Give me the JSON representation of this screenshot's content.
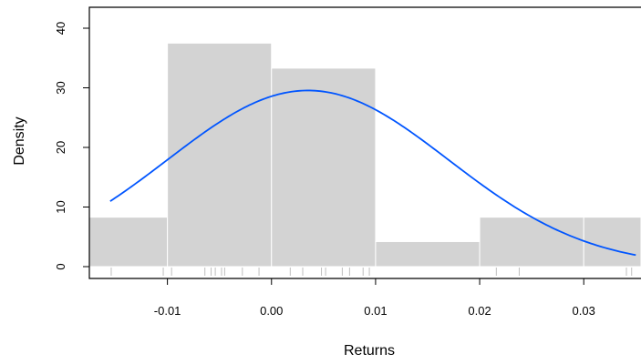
{
  "chart_data": {
    "type": "bar",
    "subtype": "histogram with density curve and rug",
    "title": "",
    "xlabel": "Returns",
    "ylabel": "Density",
    "xlim": [
      -0.0175,
      0.0355
    ],
    "ylim": [
      0,
      43
    ],
    "x_ticks": [
      -0.01,
      0.0,
      0.01,
      0.02,
      0.03
    ],
    "x_tick_labels": [
      "-0.01",
      "0.00",
      "0.01",
      "0.02",
      "0.03"
    ],
    "y_ticks": [
      0,
      10,
      20,
      30,
      40
    ],
    "y_tick_labels": [
      "0",
      "10",
      "20",
      "30",
      "40"
    ],
    "bins": [
      {
        "from": -0.02,
        "to": -0.01,
        "density": 8.3
      },
      {
        "from": -0.01,
        "to": 0.0,
        "density": 37.5
      },
      {
        "from": 0.0,
        "to": 0.01,
        "density": 33.3
      },
      {
        "from": 0.01,
        "to": 0.02,
        "density": 4.2
      },
      {
        "from": 0.02,
        "to": 0.03,
        "density": 8.3
      },
      {
        "from": 0.03,
        "to": 0.04,
        "density": 8.3
      }
    ],
    "normal_curve": {
      "mean": 0.0035,
      "sd": 0.0135,
      "x_range": [
        -0.0155,
        0.035
      ]
    },
    "rug": [
      -0.0154,
      -0.0104,
      -0.0096,
      -0.0064,
      -0.0058,
      -0.0054,
      -0.0048,
      -0.0045,
      -0.0028,
      -0.0012,
      0.0018,
      0.003,
      0.0048,
      0.0052,
      0.0068,
      0.0075,
      0.0088,
      0.0094,
      0.0216,
      0.0238,
      0.0341,
      0.0346
    ],
    "colors": {
      "bar_fill": "#d3d3d3",
      "bar_border": "#ffffff",
      "curve": "#0055ff",
      "rug": "#bfbfbf",
      "axis": "#000000"
    },
    "grid": false,
    "legend": "none"
  }
}
